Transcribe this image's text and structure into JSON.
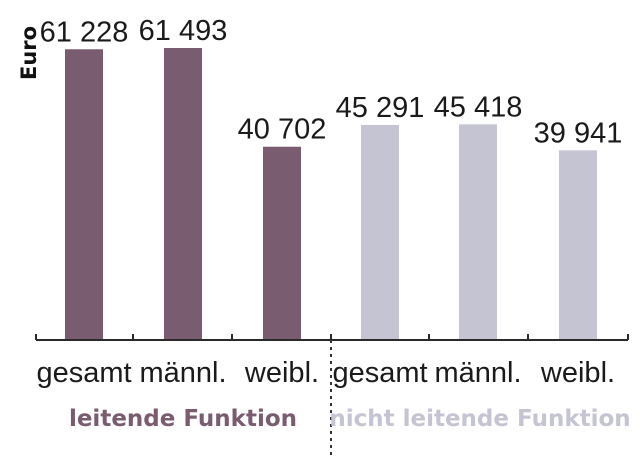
{
  "chart_data": {
    "type": "bar",
    "title": "",
    "ylabel": "Euro",
    "xlabel": "",
    "ylim": [
      0,
      65000
    ],
    "grid": false,
    "categories": [
      "gesamt",
      "männl.",
      "weibl.",
      "gesamt",
      "männl.",
      "weibl."
    ],
    "values": [
      61228,
      61493,
      40702,
      45291,
      45418,
      39941
    ],
    "value_labels": [
      "61 228",
      "61 493",
      "40 702",
      "45 291",
      "45 418",
      "39 941"
    ],
    "groups": [
      {
        "label": "leitende Funktion",
        "indices": [
          0,
          1,
          2
        ],
        "color": "#7a5c70"
      },
      {
        "label": "nicht leitende Funktion",
        "indices": [
          3,
          4,
          5
        ],
        "color": "#c5c4d2"
      }
    ]
  }
}
